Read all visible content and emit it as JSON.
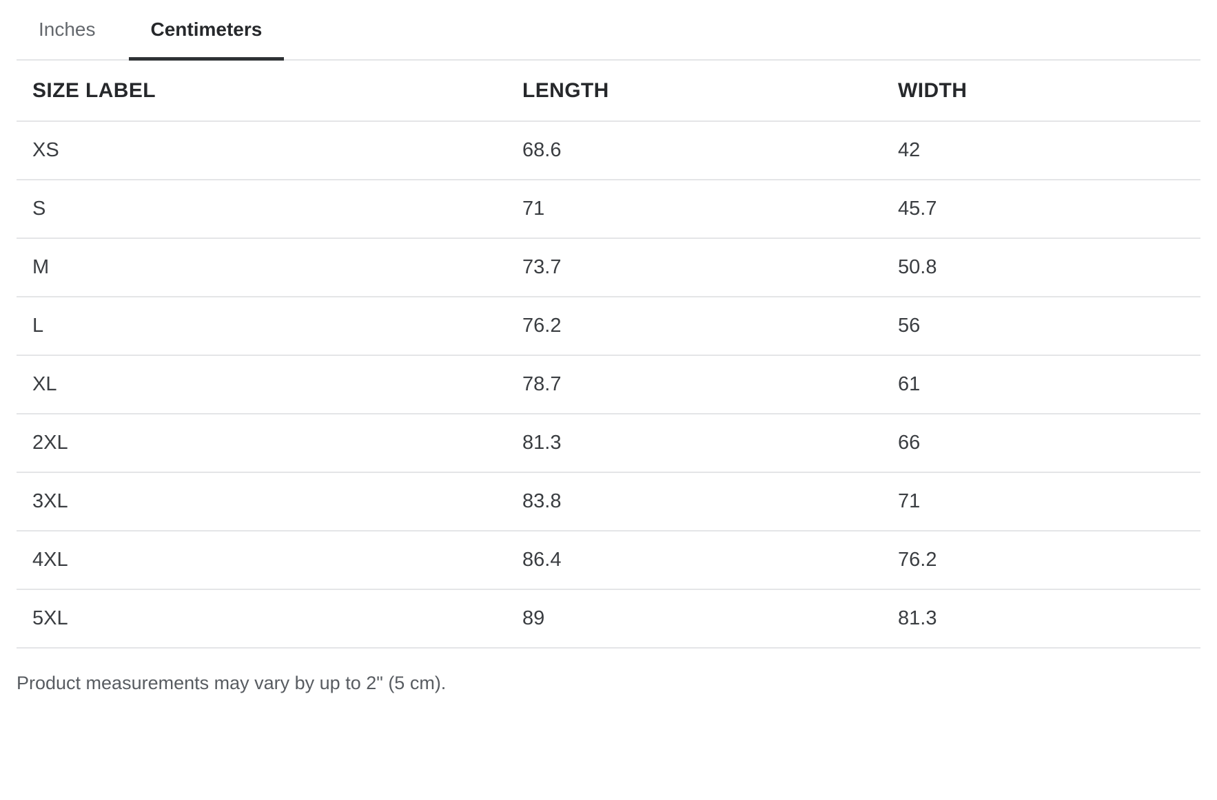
{
  "tabs": [
    {
      "label": "Inches",
      "active": false
    },
    {
      "label": "Centimeters",
      "active": true
    }
  ],
  "table": {
    "columns": [
      "SIZE LABEL",
      "LENGTH",
      "WIDTH"
    ],
    "rows": [
      {
        "size": "XS",
        "length": "68.6",
        "width": "42"
      },
      {
        "size": "S",
        "length": "71",
        "width": "45.7"
      },
      {
        "size": "M",
        "length": "73.7",
        "width": "50.8"
      },
      {
        "size": "L",
        "length": "76.2",
        "width": "56"
      },
      {
        "size": "XL",
        "length": "78.7",
        "width": "61"
      },
      {
        "size": "2XL",
        "length": "81.3",
        "width": "66"
      },
      {
        "size": "3XL",
        "length": "83.8",
        "width": "71"
      },
      {
        "size": "4XL",
        "length": "86.4",
        "width": "76.2"
      },
      {
        "size": "5XL",
        "length": "89",
        "width": "81.3"
      }
    ]
  },
  "footnote": "Product measurements may vary by up to 2\" (5 cm).",
  "colors": {
    "divider": "#e4e5e7",
    "text_primary": "#26282b",
    "text_body": "#3a3d41",
    "text_muted": "#64686d",
    "text_footnote": "#585c61",
    "underline": "#2f3235"
  }
}
